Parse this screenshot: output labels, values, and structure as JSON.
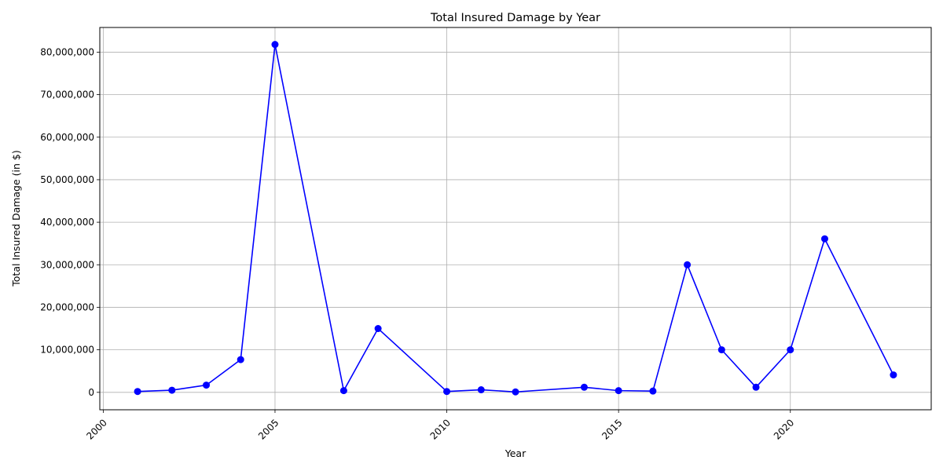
{
  "chart_data": {
    "type": "line",
    "title": "Total Insured Damage by Year",
    "xlabel": "Year",
    "ylabel": "Total Insured Damage (in $)",
    "xlim": [
      1999.9,
      2024.1
    ],
    "ylim": [
      -4100000,
      85800000
    ],
    "xticks": [
      2000,
      2005,
      2010,
      2015,
      2020
    ],
    "xtick_labels": [
      "2000",
      "2005",
      "2010",
      "2015",
      "2020"
    ],
    "yticks": [
      0,
      10000000,
      20000000,
      30000000,
      40000000,
      50000000,
      60000000,
      70000000,
      80000000
    ],
    "ytick_labels": [
      "0",
      "10,000,000",
      "20,000,000",
      "30,000,000",
      "40,000,000",
      "50,000,000",
      "60,000,000",
      "70,000,000",
      "80,000,000"
    ],
    "grid": true,
    "color": "#0000ff",
    "series": [
      {
        "x": [
          2001,
          2002,
          2003,
          2004,
          2005,
          2007,
          2008,
          2010,
          2011,
          2012,
          2014,
          2015,
          2016,
          2017,
          2018,
          2019,
          2020,
          2021,
          2023
        ],
        "values": [
          200000,
          500000,
          1700000,
          7700000,
          81800000,
          400000,
          15000000,
          200000,
          600000,
          100000,
          1200000,
          400000,
          300000,
          30000000,
          10000000,
          1200000,
          10000000,
          36100000,
          4100000
        ]
      }
    ]
  }
}
